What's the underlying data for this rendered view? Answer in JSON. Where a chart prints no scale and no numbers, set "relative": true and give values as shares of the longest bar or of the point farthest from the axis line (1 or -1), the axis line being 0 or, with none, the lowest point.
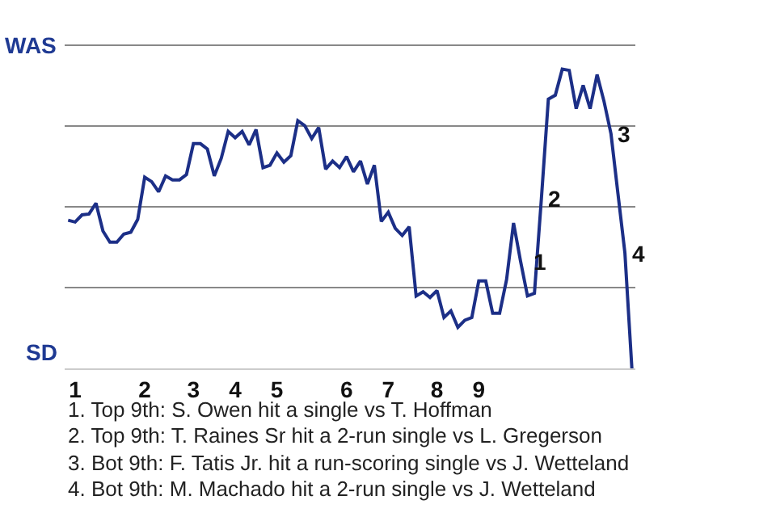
{
  "chart_data": {
    "type": "line",
    "categories": [
      null,
      "1",
      null,
      null,
      null,
      null,
      null,
      null,
      null,
      null,
      null,
      "2",
      null,
      null,
      null,
      null,
      null,
      null,
      "3",
      null,
      null,
      null,
      null,
      null,
      "4",
      null,
      null,
      null,
      null,
      null,
      "5",
      null,
      null,
      null,
      null,
      null,
      null,
      null,
      null,
      null,
      "6",
      null,
      null,
      null,
      null,
      null,
      "7",
      null,
      null,
      null,
      null,
      null,
      null,
      "8",
      null,
      null,
      null,
      null,
      null,
      "9",
      null,
      null,
      null,
      null,
      null,
      null,
      null,
      null,
      null,
      null,
      null,
      null,
      null,
      null,
      null,
      null,
      null,
      null,
      null,
      null,
      null,
      null
    ],
    "relative": true,
    "series": [
      {
        "color": "#1c2f87",
        "values": [
          0.495,
          0.489,
          0.513,
          0.516,
          0.552,
          0.459,
          0.422,
          0.422,
          0.449,
          0.455,
          0.498,
          0.639,
          0.624,
          0.59,
          0.643,
          0.63,
          0.63,
          0.648,
          0.751,
          0.751,
          0.733,
          0.643,
          0.702,
          0.792,
          0.771,
          0.792,
          0.747,
          0.798,
          0.671,
          0.679,
          0.72,
          0.689,
          0.711,
          0.828,
          0.811,
          0.768,
          0.805,
          0.666,
          0.693,
          0.671,
          0.708,
          0.657,
          0.693,
          0.616,
          0.679,
          0.491,
          0.522,
          0.468,
          0.444,
          0.473,
          0.242,
          0.256,
          0.237,
          0.26,
          0.17,
          0.192,
          0.137,
          0.161,
          0.17,
          0.292,
          0.292,
          0.184,
          0.184,
          0.297,
          0.486,
          0.359,
          0.242,
          0.251,
          0.567,
          0.9,
          0.913,
          1,
          0.996,
          0.868,
          0.946,
          0.868,
          0.982,
          0.892,
          0.784,
          0.584,
          0.386,
          0
        ],
        "name": null
      }
    ],
    "grid": "y",
    "marker": "none",
    "line_style": "solid",
    "annotations": [
      "WAS",
      "SD",
      "1",
      "2",
      "3",
      "4",
      "1. Top 9th: S. Owen hit a single vs T. Hoffman",
      "2. Top 9th: T. Raines Sr hit a 2-run single vs L. Gregerson",
      "3. Bot 9th: F. Tatis Jr. hit a run-scoring single vs J. Wetteland",
      "4. Bot 9th: M. Machado hit a 2-run single vs J. Wetteland"
    ]
  }
}
